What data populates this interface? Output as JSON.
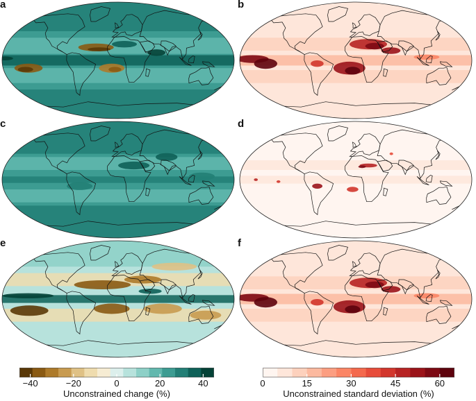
{
  "panels": [
    {
      "label": "a",
      "scheme": "change",
      "style": "strong"
    },
    {
      "label": "b",
      "scheme": "std",
      "style": "strong"
    },
    {
      "label": "c",
      "scheme": "change",
      "style": "uniform"
    },
    {
      "label": "d",
      "scheme": "std",
      "style": "light"
    },
    {
      "label": "e",
      "scheme": "change",
      "style": "mixed"
    },
    {
      "label": "f",
      "scheme": "std",
      "style": "strong"
    }
  ],
  "colorbar_change": {
    "title": "Unconstrained change (%)",
    "ticks": [
      "−40",
      "−20",
      "0",
      "20",
      "40"
    ],
    "tick_values": [
      -40,
      -20,
      0,
      20,
      40
    ],
    "range": [
      -45,
      45
    ],
    "colors": [
      "#5a3807",
      "#8a5a13",
      "#ad7a2a",
      "#c89b50",
      "#dfc185",
      "#efdcae",
      "#f6ecd3",
      "#dcefec",
      "#b7e2dc",
      "#8dd0c7",
      "#62b8ae",
      "#3d9c92",
      "#227f76",
      "#0e6158",
      "#044237"
    ]
  },
  "colorbar_std": {
    "title": "Unconstrained standard deviation (%)",
    "ticks": [
      "0",
      "15",
      "30",
      "45",
      "60"
    ],
    "tick_values": [
      0,
      15,
      30,
      45,
      60
    ],
    "range": [
      0,
      65
    ],
    "colors": [
      "#fff5f0",
      "#fee6da",
      "#fdd1bd",
      "#fcb99f",
      "#fc9e81",
      "#fb8565",
      "#f4694d",
      "#e74c3a",
      "#d2362c",
      "#b72323",
      "#9b1319",
      "#7d0913",
      "#5e030d"
    ]
  },
  "colors": {
    "change_neg_strong": "#8a5a13",
    "change_pos_strong": "#0e6158",
    "std_high": "#7d0913",
    "coast": "#111111"
  }
}
